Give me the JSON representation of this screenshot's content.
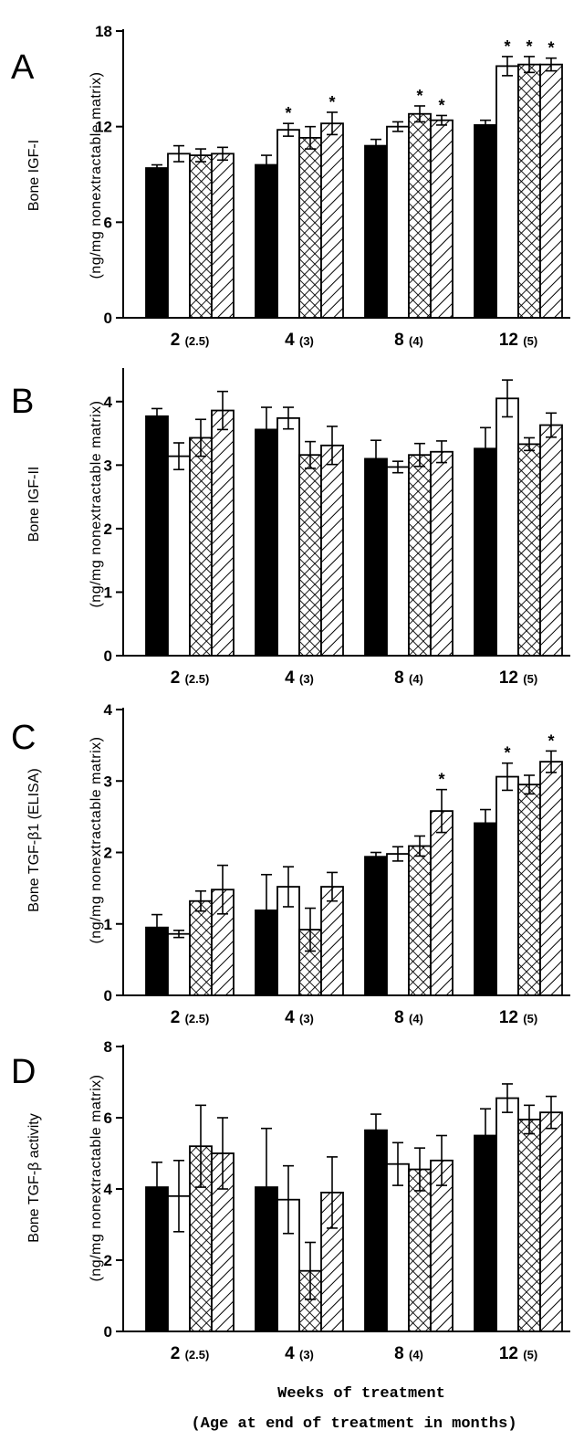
{
  "x_title": "Weeks of treatment",
  "x_subtitle": "(Age at end of treatment in months)",
  "chart_data": [
    {
      "type": "bar",
      "panel": "A",
      "ylabel_top": "Bone IGF-I",
      "ylabel_units": "(ng/mg nonextractable matrix)",
      "ylim": [
        0,
        18
      ],
      "yticks": [
        0,
        6,
        12,
        18
      ],
      "categories": [
        "2",
        "4",
        "8",
        "12"
      ],
      "category_ages": [
        "(2.5)",
        "(3)",
        "(4)",
        "(5)"
      ],
      "series": [
        {
          "fill": "solid",
          "values": [
            9.4,
            9.6,
            10.8,
            12.1
          ],
          "errors": [
            0.2,
            0.6,
            0.4,
            0.3
          ],
          "significant": [
            false,
            false,
            false,
            false
          ]
        },
        {
          "fill": "open",
          "values": [
            10.3,
            11.8,
            12.0,
            15.8
          ],
          "errors": [
            0.5,
            0.4,
            0.3,
            0.6
          ],
          "significant": [
            false,
            true,
            false,
            true
          ]
        },
        {
          "fill": "crosshatch",
          "values": [
            10.2,
            11.3,
            12.8,
            15.9
          ],
          "errors": [
            0.4,
            0.7,
            0.5,
            0.5
          ],
          "significant": [
            false,
            false,
            true,
            true
          ]
        },
        {
          "fill": "diagonal",
          "values": [
            10.3,
            12.2,
            12.4,
            15.9
          ],
          "errors": [
            0.4,
            0.7,
            0.3,
            0.4
          ],
          "significant": [
            false,
            true,
            true,
            true
          ]
        }
      ]
    },
    {
      "type": "bar",
      "panel": "B",
      "ylabel_top": "Bone IGF-II",
      "ylabel_units": "(ng/mg nonextractable matrix)",
      "ylim": [
        0,
        4.5
      ],
      "yticks": [
        0,
        1,
        2,
        3,
        4
      ],
      "categories": [
        "2",
        "4",
        "8",
        "12"
      ],
      "category_ages": [
        "(2.5)",
        "(3)",
        "(4)",
        "(5)"
      ],
      "series": [
        {
          "fill": "solid",
          "values": [
            3.77,
            3.56,
            3.1,
            3.26
          ],
          "errors": [
            0.12,
            0.35,
            0.29,
            0.33
          ],
          "significant": [
            false,
            false,
            false,
            false
          ]
        },
        {
          "fill": "open",
          "values": [
            3.14,
            3.74,
            2.97,
            4.05
          ],
          "errors": [
            0.21,
            0.17,
            0.09,
            0.29
          ],
          "significant": [
            false,
            false,
            false,
            false
          ]
        },
        {
          "fill": "crosshatch",
          "values": [
            3.43,
            3.16,
            3.16,
            3.33
          ],
          "errors": [
            0.29,
            0.21,
            0.18,
            0.1
          ],
          "significant": [
            false,
            false,
            false,
            false
          ]
        },
        {
          "fill": "diagonal",
          "values": [
            3.86,
            3.31,
            3.21,
            3.63
          ],
          "errors": [
            0.3,
            0.3,
            0.17,
            0.19
          ],
          "significant": [
            false,
            false,
            false,
            false
          ]
        }
      ]
    },
    {
      "type": "bar",
      "panel": "C",
      "ylabel_top": "Bone TGF-β1 (ELISA)",
      "ylabel_units": "(ng/mg nonextractable matrix)",
      "ylim": [
        0,
        4
      ],
      "yticks": [
        0,
        1,
        2,
        3,
        4
      ],
      "categories": [
        "2",
        "4",
        "8",
        "12"
      ],
      "category_ages": [
        "(2.5)",
        "(3)",
        "(4)",
        "(5)"
      ],
      "series": [
        {
          "fill": "solid",
          "values": [
            0.95,
            1.19,
            1.94,
            2.41
          ],
          "errors": [
            0.18,
            0.5,
            0.06,
            0.19
          ],
          "significant": [
            false,
            false,
            false,
            false
          ]
        },
        {
          "fill": "open",
          "values": [
            0.86,
            1.52,
            1.98,
            3.06
          ],
          "errors": [
            0.05,
            0.28,
            0.1,
            0.19
          ],
          "significant": [
            false,
            false,
            false,
            true
          ]
        },
        {
          "fill": "crosshatch",
          "values": [
            1.32,
            0.92,
            2.09,
            2.95
          ],
          "errors": [
            0.14,
            0.3,
            0.14,
            0.13
          ],
          "significant": [
            false,
            false,
            false,
            false
          ]
        },
        {
          "fill": "diagonal",
          "values": [
            1.48,
            1.52,
            2.58,
            3.27
          ],
          "errors": [
            0.34,
            0.2,
            0.3,
            0.15
          ],
          "significant": [
            false,
            false,
            true,
            true
          ]
        }
      ]
    },
    {
      "type": "bar",
      "panel": "D",
      "ylabel_top": "Bone TGF-β activity",
      "ylabel_units": "(ng/mg nonextractable matrix)",
      "ylim": [
        0,
        8
      ],
      "yticks": [
        0,
        2,
        4,
        6,
        8
      ],
      "categories": [
        "2",
        "4",
        "8",
        "12"
      ],
      "category_ages": [
        "(2.5)",
        "(3)",
        "(4)",
        "(5)"
      ],
      "series": [
        {
          "fill": "solid",
          "values": [
            4.05,
            4.05,
            5.65,
            5.5
          ],
          "errors": [
            0.7,
            1.65,
            0.45,
            0.75
          ],
          "significant": [
            false,
            false,
            false,
            false
          ]
        },
        {
          "fill": "open",
          "values": [
            3.8,
            3.7,
            4.7,
            6.55
          ],
          "errors": [
            1.0,
            0.95,
            0.6,
            0.4
          ],
          "significant": [
            false,
            false,
            false,
            false
          ]
        },
        {
          "fill": "crosshatch",
          "values": [
            5.2,
            1.7,
            4.55,
            5.95
          ],
          "errors": [
            1.15,
            0.8,
            0.6,
            0.4
          ],
          "significant": [
            false,
            false,
            false,
            false
          ]
        },
        {
          "fill": "diagonal",
          "values": [
            5.0,
            3.9,
            4.8,
            6.15
          ],
          "errors": [
            1.0,
            1.0,
            0.7,
            0.45
          ],
          "significant": [
            false,
            false,
            false,
            false
          ]
        }
      ]
    }
  ]
}
